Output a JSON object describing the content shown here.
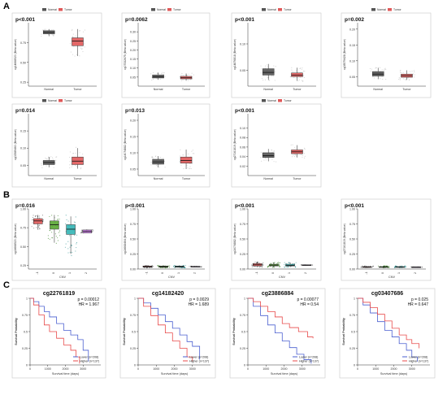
{
  "panel_labels": {
    "A": "A",
    "B": "B",
    "C": "C"
  },
  "legend": {
    "normal": "Normal",
    "tumor": "Tumor"
  },
  "colors": {
    "normal": "#555555",
    "tumor": "#e05858",
    "lower": "#4a5fd0",
    "higher": "#e84a4a",
    "cnv_m1": "#e45a5a",
    "cnv_0": "#5aa832",
    "cnv_1": "#33b5b5",
    "cnv_2": "#c878e6"
  },
  "chart_data": [
    {
      "type": "box",
      "section": "A",
      "p": "p<0.001",
      "ylabel": "cg14668520 (Beta value)",
      "ylim": [
        0.2,
        1.0
      ],
      "ticks": [
        0.25,
        0.5,
        0.75
      ],
      "categories": [
        "Normal",
        "Tumor"
      ],
      "boxes": [
        {
          "q1": 0.86,
          "med": 0.88,
          "q3": 0.9,
          "lo": 0.83,
          "hi": 0.92
        },
        {
          "q1": 0.71,
          "med": 0.77,
          "q3": 0.81,
          "lo": 0.58,
          "hi": 0.92
        }
      ]
    },
    {
      "type": "box",
      "section": "A",
      "p": "p=0.0062",
      "ylabel": "cg07332675 (Beta value)",
      "ylim": [
        0.0,
        0.35
      ],
      "ticks": [
        0.05,
        0.1,
        0.15,
        0.2,
        0.25,
        0.3
      ],
      "categories": [
        "Normal",
        "Tumor"
      ],
      "boxes": [
        {
          "q1": 0.045,
          "med": 0.052,
          "q3": 0.062,
          "lo": 0.035,
          "hi": 0.075
        },
        {
          "q1": 0.04,
          "med": 0.046,
          "q3": 0.054,
          "lo": 0.03,
          "hi": 0.07
        }
      ]
    },
    {
      "type": "box",
      "section": "A",
      "p": "p<0.001",
      "ylabel": "cg14876818 (Beta value)",
      "ylim": [
        0.02,
        0.14
      ],
      "ticks": [
        0.05,
        0.1
      ],
      "categories": [
        "Normal",
        "Tumor"
      ],
      "boxes": [
        {
          "q1": 0.041,
          "med": 0.046,
          "q3": 0.053,
          "lo": 0.032,
          "hi": 0.062
        },
        {
          "q1": 0.038,
          "med": 0.041,
          "q3": 0.045,
          "lo": 0.03,
          "hi": 0.055
        }
      ]
    },
    {
      "type": "box",
      "section": "A",
      "p": "p=0.002",
      "ylabel": "cg08579428 (Beta value)",
      "ylim": [
        0.02,
        0.22
      ],
      "ticks": [
        0.05,
        0.1,
        0.15,
        0.2
      ],
      "categories": [
        "Normal",
        "Tumor"
      ],
      "boxes": [
        {
          "q1": 0.052,
          "med": 0.058,
          "q3": 0.066,
          "lo": 0.042,
          "hi": 0.078
        },
        {
          "q1": 0.048,
          "med": 0.053,
          "q3": 0.058,
          "lo": 0.04,
          "hi": 0.07
        }
      ]
    },
    {
      "type": "box",
      "section": "A",
      "p": "p=0.014",
      "ylabel": "cg02589460 (Beta value)",
      "ylim": [
        0.02,
        0.2
      ],
      "ticks": [
        0.05,
        0.1,
        0.15
      ],
      "categories": [
        "Normal",
        "Tumor"
      ],
      "boxes": [
        {
          "q1": 0.052,
          "med": 0.058,
          "q3": 0.064,
          "lo": 0.044,
          "hi": 0.074
        },
        {
          "q1": 0.052,
          "med": 0.062,
          "q3": 0.074,
          "lo": 0.04,
          "hi": 0.1
        }
      ]
    },
    {
      "type": "box",
      "section": "A",
      "p": "p=0.013",
      "ylabel": "cg14074882 (Beta value)",
      "ylim": [
        0.03,
        0.22
      ],
      "ticks": [
        0.05,
        0.1,
        0.15,
        0.2
      ],
      "categories": [
        "Normal",
        "Tumor"
      ],
      "boxes": [
        {
          "q1": 0.065,
          "med": 0.072,
          "q3": 0.08,
          "lo": 0.055,
          "hi": 0.09
        },
        {
          "q1": 0.068,
          "med": 0.076,
          "q3": 0.087,
          "lo": 0.05,
          "hi": 0.11
        }
      ]
    },
    {
      "type": "box",
      "section": "A",
      "p": "p<0.001",
      "ylabel": "cg27161819 (Beta value)",
      "ylim": [
        0.0,
        0.13
      ],
      "ticks": [
        0.02,
        0.04,
        0.06,
        0.08,
        0.1
      ],
      "categories": [
        "Normal",
        "Tumor"
      ],
      "boxes": [
        {
          "q1": 0.038,
          "med": 0.042,
          "q3": 0.048,
          "lo": 0.03,
          "hi": 0.056
        },
        {
          "q1": 0.046,
          "med": 0.05,
          "q3": 0.054,
          "lo": 0.038,
          "hi": 0.064
        }
      ]
    },
    {
      "type": "box",
      "section": "B",
      "p": "p=0.016",
      "ylabel": "cg14668520 (Beta value)",
      "ylim": [
        0.2,
        1.0
      ],
      "ticks": [
        0.25,
        0.5,
        0.75,
        1.0
      ],
      "categories": [
        "-1",
        "0",
        "1",
        "2"
      ],
      "xlabel": "CNV",
      "boxes": [
        {
          "q1": 0.8,
          "med": 0.84,
          "q3": 0.87,
          "lo": 0.73,
          "hi": 0.92
        },
        {
          "q1": 0.73,
          "med": 0.79,
          "q3": 0.84,
          "lo": 0.55,
          "hi": 0.92
        },
        {
          "q1": 0.66,
          "med": 0.73,
          "q3": 0.79,
          "lo": 0.4,
          "hi": 0.9
        },
        {
          "q1": 0.68,
          "med": 0.7,
          "q3": 0.72,
          "lo": 0.68,
          "hi": 0.72
        }
      ]
    },
    {
      "type": "box",
      "section": "B",
      "p": "p<0.001",
      "ylabel": "cg14668464 (Beta value)",
      "ylim": [
        0.0,
        1.0
      ],
      "ticks": [
        0.0,
        0.25,
        0.5,
        0.75,
        1.0
      ],
      "categories": [
        "-1",
        "0",
        "1",
        "2"
      ],
      "xlabel": "CNV",
      "boxes": [
        {
          "q1": 0.03,
          "med": 0.04,
          "q3": 0.05,
          "lo": 0.02,
          "hi": 0.06
        },
        {
          "q1": 0.03,
          "med": 0.04,
          "q3": 0.05,
          "lo": 0.02,
          "hi": 0.06
        },
        {
          "q1": 0.03,
          "med": 0.04,
          "q3": 0.05,
          "lo": 0.02,
          "hi": 0.06
        },
        {
          "q1": 0.035,
          "med": 0.04,
          "q3": 0.045,
          "lo": 0.035,
          "hi": 0.045
        }
      ]
    },
    {
      "type": "box",
      "section": "B",
      "p": "p<0.001",
      "ylabel": "cg14074882 (Beta value)",
      "ylim": [
        0.0,
        1.0
      ],
      "ticks": [
        0.0,
        0.25,
        0.5,
        0.75,
        1.0
      ],
      "categories": [
        "-1",
        "0",
        "1",
        "2"
      ],
      "xlabel": "CNV",
      "boxes": [
        {
          "q1": 0.05,
          "med": 0.07,
          "q3": 0.09,
          "lo": 0.03,
          "hi": 0.12
        },
        {
          "q1": 0.05,
          "med": 0.065,
          "q3": 0.08,
          "lo": 0.03,
          "hi": 0.11
        },
        {
          "q1": 0.05,
          "med": 0.06,
          "q3": 0.08,
          "lo": 0.03,
          "hi": 0.11
        },
        {
          "q1": 0.06,
          "med": 0.065,
          "q3": 0.07,
          "lo": 0.06,
          "hi": 0.07
        }
      ]
    },
    {
      "type": "box",
      "section": "B",
      "p": "p<0.001",
      "ylabel": "cg27161819 (Beta value)",
      "ylim": [
        0.0,
        1.0
      ],
      "ticks": [
        0.0,
        0.25,
        0.5,
        0.75,
        1.0
      ],
      "categories": [
        "-1",
        "0",
        "1",
        "2"
      ],
      "xlabel": "CNV",
      "boxes": [
        {
          "q1": 0.03,
          "med": 0.035,
          "q3": 0.04,
          "lo": 0.02,
          "hi": 0.05
        },
        {
          "q1": 0.03,
          "med": 0.035,
          "q3": 0.04,
          "lo": 0.02,
          "hi": 0.05
        },
        {
          "q1": 0.03,
          "med": 0.035,
          "q3": 0.04,
          "lo": 0.02,
          "hi": 0.05
        },
        {
          "q1": 0.03,
          "med": 0.033,
          "q3": 0.036,
          "lo": 0.03,
          "hi": 0.036
        }
      ]
    },
    {
      "type": "line",
      "section": "C",
      "title": "cg22761819",
      "stats": [
        "p = 0.00012",
        "HR = 1.967"
      ],
      "xlabel": "Survival time (days)",
      "ylabel": "Survival Probability",
      "xlim": [
        0,
        4000
      ],
      "ylim": [
        0,
        1
      ],
      "xticks": [
        0,
        1000,
        2000,
        3000
      ],
      "yticks": [
        0,
        0.25,
        0.5,
        0.75,
        1.0
      ],
      "legend_entries": [
        "Lower (n=208)",
        "Higher (n=137)"
      ],
      "series": [
        {
          "name": "Lower",
          "color_key": "lower",
          "points": [
            [
              0,
              1
            ],
            [
              200,
              0.95
            ],
            [
              500,
              0.88
            ],
            [
              800,
              0.8
            ],
            [
              1100,
              0.72
            ],
            [
              1500,
              0.62
            ],
            [
              1900,
              0.52
            ],
            [
              2300,
              0.45
            ],
            [
              2700,
              0.38
            ],
            [
              3000,
              0.22
            ],
            [
              3300,
              0.05
            ]
          ]
        },
        {
          "name": "Higher",
          "color_key": "higher",
          "points": [
            [
              0,
              1
            ],
            [
              200,
              0.9
            ],
            [
              500,
              0.75
            ],
            [
              800,
              0.6
            ],
            [
              1100,
              0.5
            ],
            [
              1500,
              0.4
            ],
            [
              1900,
              0.3
            ],
            [
              2300,
              0.22
            ],
            [
              2600,
              0.12
            ],
            [
              2800,
              0.02
            ]
          ]
        }
      ]
    },
    {
      "type": "line",
      "section": "C",
      "title": "cg14182420",
      "stats": [
        "p = 0.0029",
        "HR = 1.689"
      ],
      "xlabel": "Survival time (days)",
      "ylabel": "Survival Probability",
      "xlim": [
        0,
        4000
      ],
      "ylim": [
        0,
        1
      ],
      "xticks": [
        0,
        1000,
        2000,
        3000
      ],
      "yticks": [
        0,
        0.25,
        0.5,
        0.75,
        1.0
      ],
      "legend_entries": [
        "Lower (n=208)",
        "Higher (n=137)"
      ],
      "series": [
        {
          "name": "Lower",
          "color_key": "lower",
          "points": [
            [
              0,
              1
            ],
            [
              300,
              0.93
            ],
            [
              700,
              0.85
            ],
            [
              1100,
              0.75
            ],
            [
              1500,
              0.65
            ],
            [
              1900,
              0.55
            ],
            [
              2300,
              0.45
            ],
            [
              2700,
              0.35
            ],
            [
              3000,
              0.28
            ],
            [
              3400,
              0.08
            ]
          ]
        },
        {
          "name": "Higher",
          "color_key": "higher",
          "points": [
            [
              0,
              1
            ],
            [
              300,
              0.88
            ],
            [
              700,
              0.74
            ],
            [
              1100,
              0.6
            ],
            [
              1500,
              0.48
            ],
            [
              1900,
              0.36
            ],
            [
              2300,
              0.25
            ],
            [
              2700,
              0.12
            ],
            [
              3000,
              0.05
            ]
          ]
        }
      ]
    },
    {
      "type": "line",
      "section": "C",
      "title": "cg23886884",
      "stats": [
        "p = 0.00077",
        "HR = 0.54"
      ],
      "xlabel": "Survival time (days)",
      "ylabel": "Survival Probability",
      "xlim": [
        0,
        4000
      ],
      "ylim": [
        0,
        1
      ],
      "xticks": [
        0,
        1000,
        2000,
        3000
      ],
      "yticks": [
        0,
        0.25,
        0.5,
        0.75,
        1.0
      ],
      "legend_entries": [
        "Lower (n=208)",
        "Higher (n=137)"
      ],
      "series": [
        {
          "name": "Lower",
          "color_key": "lower",
          "points": [
            [
              0,
              1
            ],
            [
              300,
              0.88
            ],
            [
              700,
              0.74
            ],
            [
              1100,
              0.6
            ],
            [
              1500,
              0.48
            ],
            [
              1900,
              0.36
            ],
            [
              2300,
              0.26
            ],
            [
              2700,
              0.16
            ],
            [
              3100,
              0.08
            ],
            [
              3500,
              0.02
            ]
          ]
        },
        {
          "name": "Higher",
          "color_key": "higher",
          "points": [
            [
              0,
              1
            ],
            [
              300,
              0.95
            ],
            [
              700,
              0.88
            ],
            [
              1100,
              0.8
            ],
            [
              1500,
              0.72
            ],
            [
              1900,
              0.62
            ],
            [
              2300,
              0.56
            ],
            [
              2800,
              0.5
            ],
            [
              3300,
              0.42
            ],
            [
              3600,
              0.4
            ]
          ]
        }
      ]
    },
    {
      "type": "line",
      "section": "C",
      "title": "cg03407686",
      "stats": [
        "p = 0.025",
        "HR = 0.647"
      ],
      "xlabel": "Survival time (days)",
      "ylabel": "Survival Probability",
      "xlim": [
        0,
        4000
      ],
      "ylim": [
        0,
        1
      ],
      "xticks": [
        0,
        1000,
        2000,
        3000
      ],
      "yticks": [
        0,
        0.25,
        0.5,
        0.75,
        1.0
      ],
      "legend_entries": [
        "Lower (n=208)",
        "Higher (n=137)"
      ],
      "series": [
        {
          "name": "Lower",
          "color_key": "lower",
          "points": [
            [
              0,
              1
            ],
            [
              300,
              0.9
            ],
            [
              700,
              0.78
            ],
            [
              1100,
              0.65
            ],
            [
              1500,
              0.52
            ],
            [
              1900,
              0.42
            ],
            [
              2300,
              0.32
            ],
            [
              2700,
              0.22
            ],
            [
              3000,
              0.12
            ],
            [
              3300,
              0.05
            ]
          ]
        },
        {
          "name": "Higher",
          "color_key": "higher",
          "points": [
            [
              0,
              1
            ],
            [
              300,
              0.94
            ],
            [
              700,
              0.86
            ],
            [
              1100,
              0.76
            ],
            [
              1500,
              0.66
            ],
            [
              1900,
              0.55
            ],
            [
              2300,
              0.45
            ],
            [
              2700,
              0.38
            ],
            [
              3000,
              0.32
            ],
            [
              3400,
              0.25
            ]
          ]
        }
      ]
    }
  ]
}
